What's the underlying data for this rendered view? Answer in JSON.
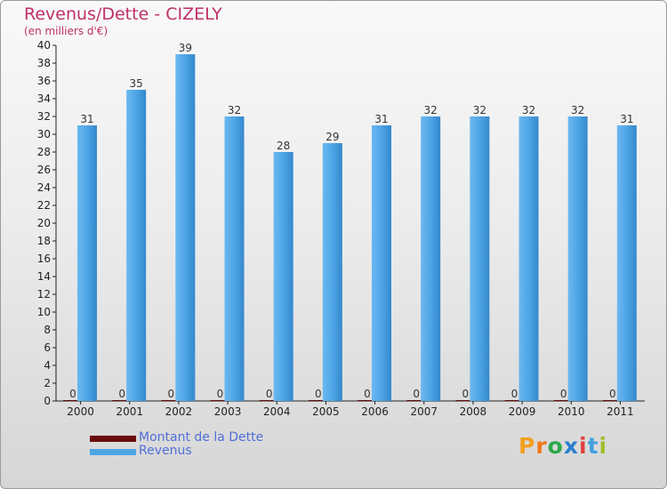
{
  "header": {
    "title": "Revenus/Dette - CIZELY",
    "subtitle": "(en milliers d'€)"
  },
  "legend": {
    "items": [
      {
        "label": "Montant de la Dette",
        "color": "#6b0c0c"
      },
      {
        "label": "Revenus",
        "color": "#4ea5e6"
      }
    ]
  },
  "brand": {
    "letters": [
      "P",
      "r",
      "o",
      "x",
      "i",
      "t",
      "i"
    ],
    "colors": [
      "#f0a020",
      "#f07818",
      "#2ba84a",
      "#2a7fd0",
      "#e04040",
      "#40a0e0",
      "#9fc02a"
    ]
  },
  "chart_data": {
    "type": "bar",
    "categories": [
      "2000",
      "2001",
      "2002",
      "2003",
      "2004",
      "2005",
      "2006",
      "2007",
      "2008",
      "2009",
      "2010",
      "2011"
    ],
    "series": [
      {
        "name": "Montant de la Dette",
        "values": [
          0,
          0,
          0,
          0,
          0,
          0,
          0,
          0,
          0,
          0,
          0,
          0
        ],
        "color": "#6b0c0c"
      },
      {
        "name": "Revenus",
        "values": [
          31,
          35,
          39,
          32,
          28,
          29,
          31,
          32,
          32,
          32,
          32,
          31
        ],
        "color": "#4ea5e6"
      }
    ],
    "ylim": [
      0,
      40
    ],
    "yticks": [
      "0",
      "2",
      "4",
      "6",
      "8",
      "10",
      "12",
      "14",
      "16",
      "18",
      "20",
      "22",
      "24",
      "26",
      "28",
      "30",
      "32",
      "34",
      "36",
      "38",
      "40"
    ],
    "grid": false,
    "legend_position": "bottom-left"
  }
}
